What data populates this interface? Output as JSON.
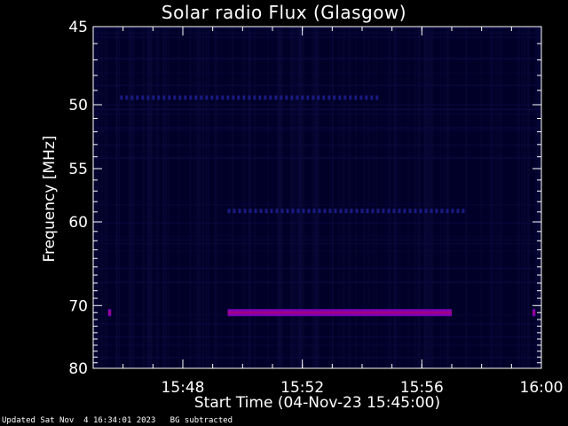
{
  "chart_data": {
    "type": "heatmap",
    "title": "Solar radio Flux (Glasgow)",
    "xlabel": "Start Time (04-Nov-23 15:45:00)",
    "ylabel": "Frequency [MHz]",
    "x_unit": "minutes",
    "xlim": [
      "15:45",
      "16:00"
    ],
    "x_tick_labels": [
      "15:48",
      "15:52",
      "15:56",
      "16:00"
    ],
    "ylim": [
      45,
      80
    ],
    "y_scale": "reciprocal",
    "y_tick_labels": [
      "45",
      "50",
      "55",
      "60",
      "70",
      "80"
    ],
    "y_ticks": [
      45,
      50,
      55,
      60,
      70,
      80
    ],
    "colormap": [
      "#000030",
      "#0000ff",
      "#8800aa",
      "#ff0055"
    ],
    "features": [
      {
        "freq_mhz": 71.0,
        "start": "15:49.5",
        "end": "15:57.0",
        "intensity": "high"
      },
      {
        "freq_mhz": 71.0,
        "start": "15:45.5",
        "end": "15:45.6",
        "intensity": "high"
      },
      {
        "freq_mhz": 71.0,
        "start": "15:59.7",
        "end": "15:59.8",
        "intensity": "high"
      },
      {
        "freq_mhz": 49.5,
        "start": "15:45.9",
        "end": "15:54.6",
        "intensity": "low"
      },
      {
        "freq_mhz": 58.9,
        "start": "15:49.5",
        "end": "15:57.5",
        "intensity": "low"
      }
    ]
  },
  "labels": {
    "title": "Solar radio Flux (Glasgow)",
    "xlabel": "Start Time (04-Nov-23 15:45:00)",
    "ylabel": "Frequency [MHz]",
    "footer": "Updated Sat Nov  4 16:34:01 2023   BG subtracted"
  },
  "colors": {
    "background": "#000000",
    "axes": "#ffffff",
    "plot_bg": "#000028",
    "burst": "#7a00b8",
    "burst_core": "#c0005a",
    "line_faint": "#1a1a80"
  }
}
